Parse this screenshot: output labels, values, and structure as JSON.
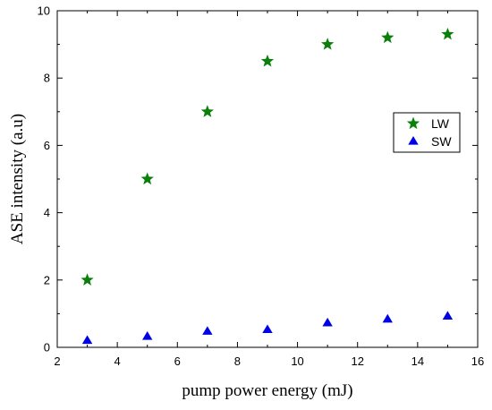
{
  "chart_data": {
    "type": "scatter",
    "title": "",
    "xlabel": "pump power energy (mJ)",
    "ylabel": "ASE intensity (a.u)",
    "xlim": [
      2,
      16
    ],
    "ylim": [
      0,
      10
    ],
    "xticks": [
      2,
      4,
      6,
      8,
      10,
      12,
      14,
      16
    ],
    "yticks": [
      0,
      2,
      4,
      6,
      8,
      10
    ],
    "grid": false,
    "legend_position": "right",
    "series": [
      {
        "name": "LW",
        "marker": "star",
        "color": "#0a800a",
        "x": [
          3,
          5,
          7,
          9,
          11,
          13,
          15
        ],
        "y": [
          2.0,
          5.0,
          7.0,
          8.5,
          9.0,
          9.2,
          9.3
        ]
      },
      {
        "name": "SW",
        "marker": "triangle",
        "color": "#0000e6",
        "x": [
          3,
          5,
          7,
          9,
          11,
          13,
          15
        ],
        "y": [
          0.2,
          0.32,
          0.47,
          0.52,
          0.72,
          0.83,
          0.92
        ]
      }
    ]
  }
}
